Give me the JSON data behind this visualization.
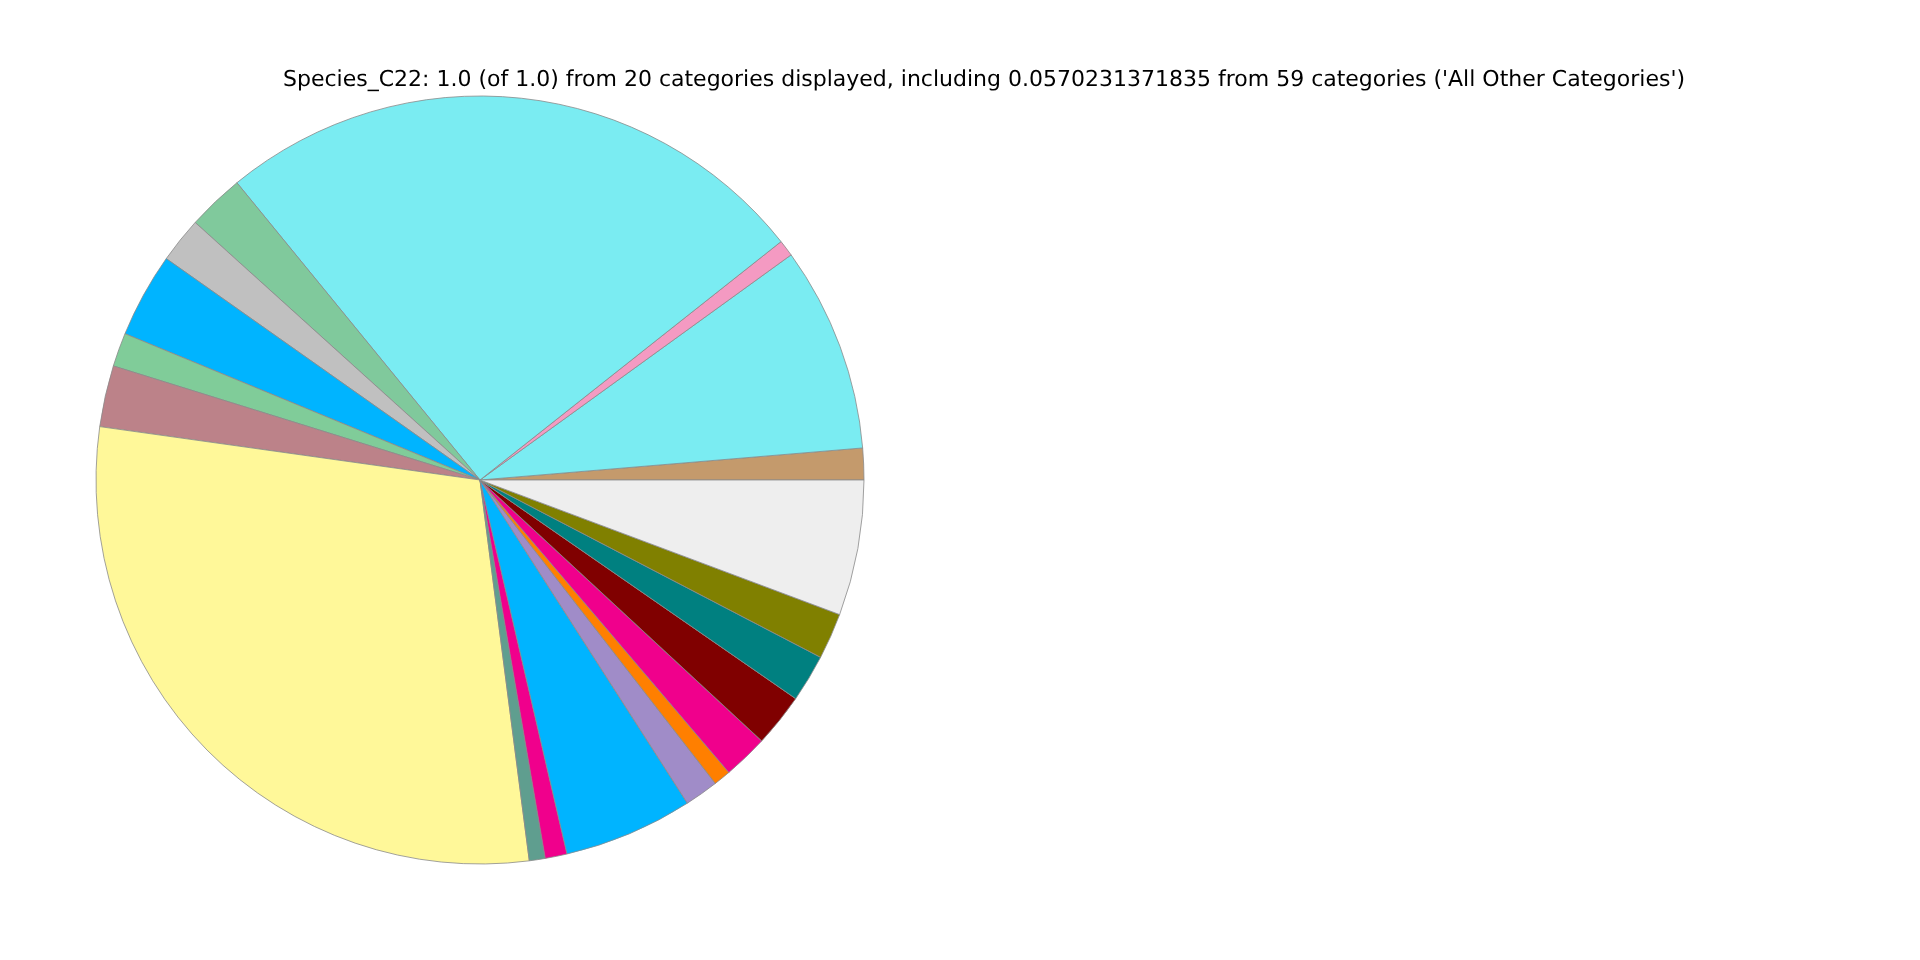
{
  "chart_data": {
    "type": "pie",
    "title": "Species_C22: 1.0 (of 1.0) from 20 categories displayed, including 0.0570231371835 from 59 categories ('All Other Categories')",
    "categories": [
      null,
      null,
      null,
      null,
      null,
      null,
      null,
      null,
      null,
      null,
      null,
      null,
      null,
      null,
      null,
      null,
      null,
      null,
      null,
      null
    ],
    "values": [
      1.33,
      8.64,
      0.69,
      25.25,
      2.39,
      1.92,
      3.56,
      1.42,
      2.58,
      29.27,
      0.67,
      0.92,
      5.44,
      1.42,
      0.72,
      1.89,
      2.25,
      2.0,
      1.94,
      5.7
    ],
    "colors": [
      "#c49a6c",
      "#7aecf2",
      "#f49ac2",
      "#7aecf2",
      "#80c99c",
      "#c0c0c0",
      "#00b4ff",
      "#80cc99",
      "#bc8289",
      "#fff899",
      "#5f9e8f",
      "#f0008c",
      "#00b4ff",
      "#a08cc8",
      "#ff7f00",
      "#f0008c",
      "#800000",
      "#008080",
      "#808000",
      "#eeeeee"
    ]
  }
}
